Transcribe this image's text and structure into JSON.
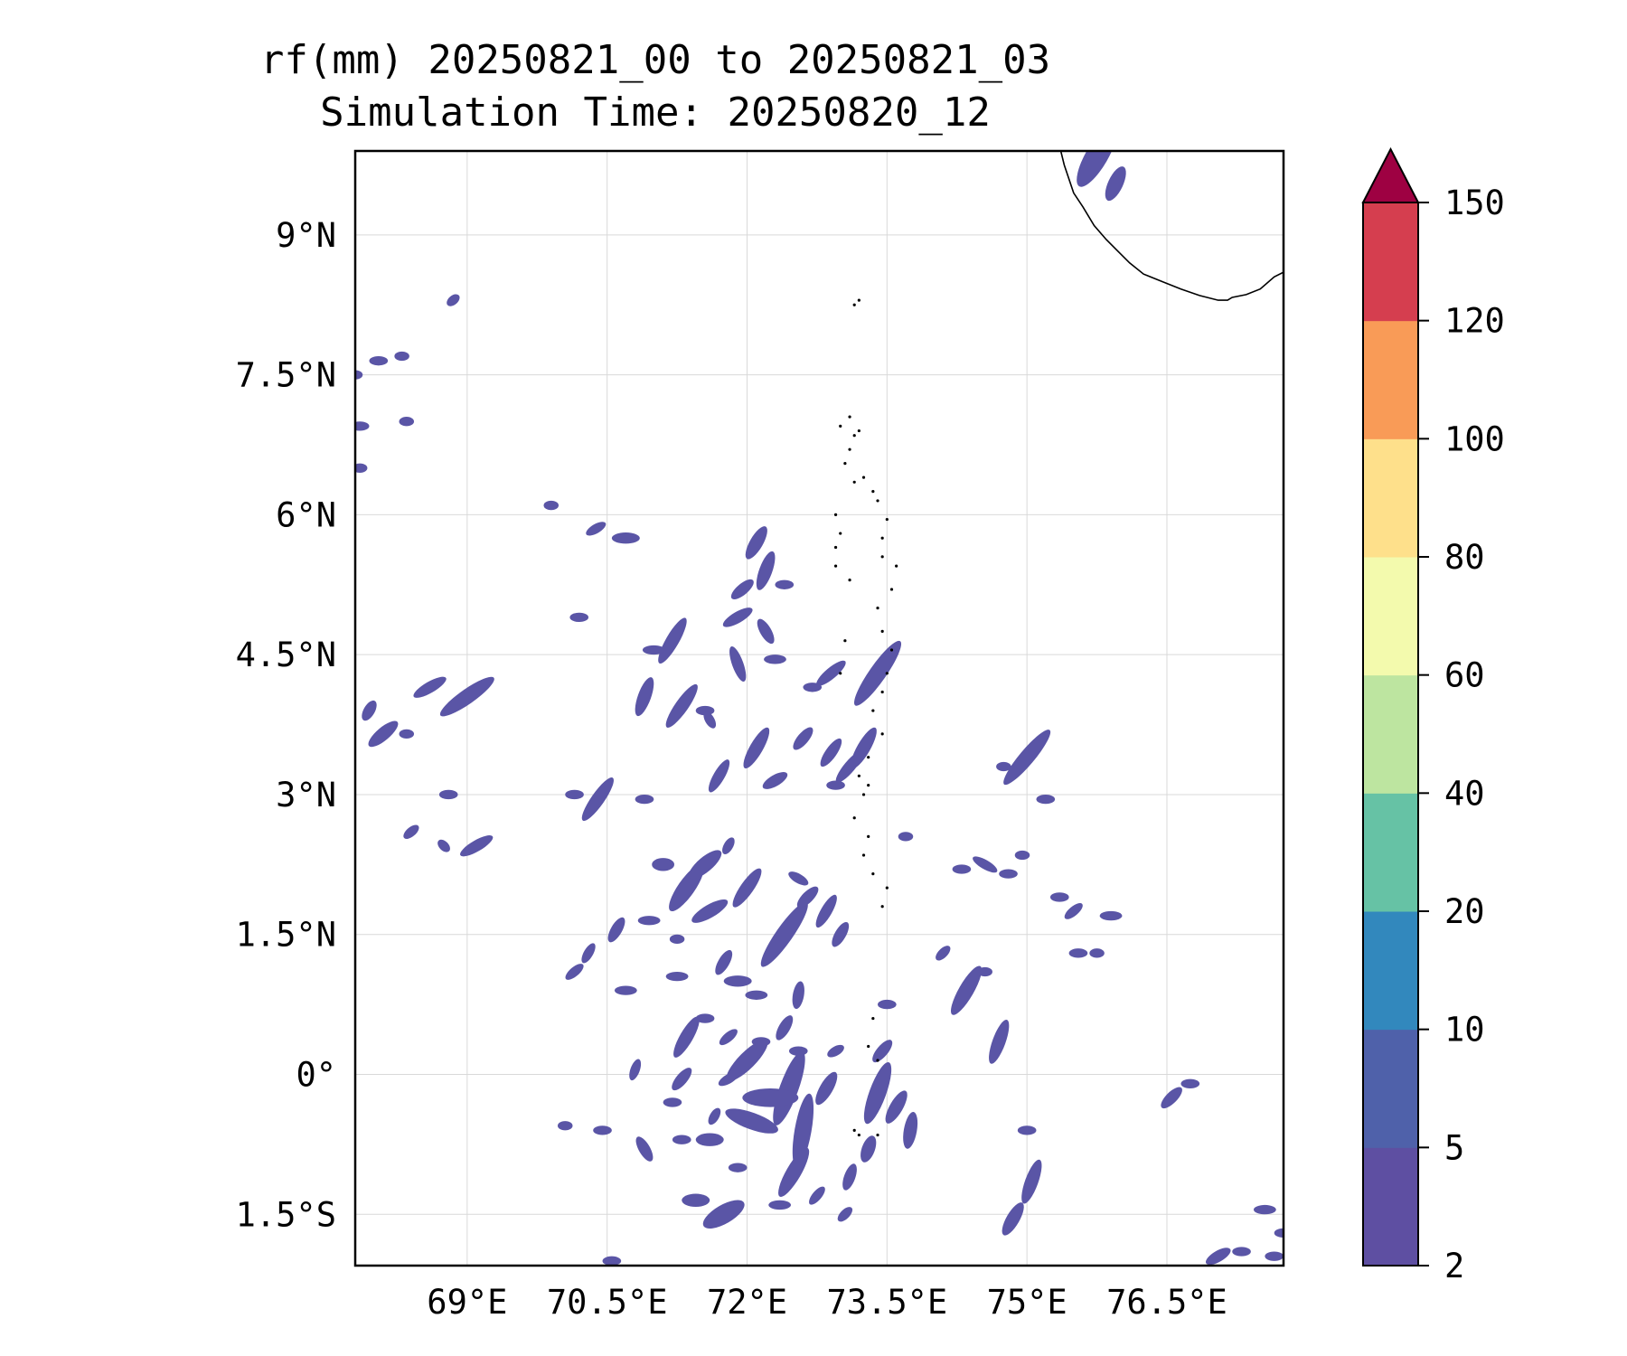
{
  "title": {
    "line1": "rf(mm) 20250821_00 to 20250821_03",
    "line2": "Simulation Time: 20250820_12"
  },
  "map": {
    "lon_range": [
      67.8,
      77.75
    ],
    "lat_range": [
      -2.05,
      9.9
    ],
    "x_ticks": [
      {
        "value": 69.0,
        "label": "69°E"
      },
      {
        "value": 70.5,
        "label": "70.5°E"
      },
      {
        "value": 72.0,
        "label": "72°E"
      },
      {
        "value": 73.5,
        "label": "73.5°E"
      },
      {
        "value": 75.0,
        "label": "75°E"
      },
      {
        "value": 76.5,
        "label": "76.5°E"
      }
    ],
    "y_ticks": [
      {
        "value": 9.0,
        "label": "9°N"
      },
      {
        "value": 7.5,
        "label": "7.5°N"
      },
      {
        "value": 6.0,
        "label": "6°N"
      },
      {
        "value": 4.5,
        "label": "4.5°N"
      },
      {
        "value": 3.0,
        "label": "3°N"
      },
      {
        "value": 1.5,
        "label": "1.5°N"
      },
      {
        "value": 0.0,
        "label": "0°"
      },
      {
        "value": -1.5,
        "label": "1.5°S"
      }
    ],
    "grid": true
  },
  "colorbar": {
    "levels": [
      2,
      5,
      10,
      20,
      40,
      60,
      80,
      100,
      120,
      150
    ],
    "labels": [
      "2",
      "5",
      "10",
      "20",
      "40",
      "60",
      "80",
      "100",
      "120",
      "150"
    ],
    "colors": [
      "#5e4fa2",
      "#4f61aa",
      "#3288bd",
      "#66c2a5",
      "#bde5a0",
      "#f3faad",
      "#fee08b",
      "#f99b57",
      "#d53e4f"
    ],
    "extend_color": "#9e0142",
    "extend": "max"
  },
  "rain_color": "#5a55a6",
  "rain_cells": [
    [
      75.75,
      9.85,
      0.38,
      0.12,
      -60
    ],
    [
      75.95,
      9.55,
      0.2,
      0.08,
      -65
    ],
    [
      70.7,
      5.75,
      0.15,
      0.06,
      0
    ],
    [
      70.38,
      5.85,
      0.12,
      0.05,
      -30
    ],
    [
      72.1,
      5.7,
      0.2,
      0.07,
      -60
    ],
    [
      72.2,
      5.4,
      0.22,
      0.07,
      -70
    ],
    [
      71.95,
      5.2,
      0.15,
      0.06,
      -40
    ],
    [
      72.4,
      5.25,
      0.1,
      0.05,
      0
    ],
    [
      71.9,
      4.9,
      0.18,
      0.06,
      -30
    ],
    [
      72.2,
      4.75,
      0.15,
      0.06,
      60
    ],
    [
      71.2,
      4.65,
      0.28,
      0.07,
      -60
    ],
    [
      71.0,
      4.55,
      0.12,
      0.05,
      0
    ],
    [
      73.4,
      4.3,
      0.42,
      0.09,
      -55
    ],
    [
      72.9,
      4.3,
      0.2,
      0.06,
      -40
    ],
    [
      71.9,
      4.4,
      0.2,
      0.06,
      70
    ],
    [
      72.3,
      4.45,
      0.12,
      0.05,
      0
    ],
    [
      72.7,
      4.15,
      0.1,
      0.05,
      0
    ],
    [
      70.9,
      4.05,
      0.22,
      0.07,
      -70
    ],
    [
      71.3,
      3.95,
      0.28,
      0.07,
      -55
    ],
    [
      71.55,
      3.9,
      0.1,
      0.05,
      0
    ],
    [
      69.0,
      4.05,
      0.35,
      0.08,
      -35
    ],
    [
      68.6,
      4.15,
      0.2,
      0.06,
      -30
    ],
    [
      67.95,
      3.9,
      0.12,
      0.06,
      -60
    ],
    [
      68.1,
      3.65,
      0.2,
      0.07,
      -40
    ],
    [
      68.35,
      3.65,
      0.08,
      0.05,
      0
    ],
    [
      72.1,
      3.5,
      0.25,
      0.07,
      -60
    ],
    [
      72.6,
      3.6,
      0.15,
      0.06,
      -50
    ],
    [
      72.9,
      3.45,
      0.18,
      0.06,
      -55
    ],
    [
      73.25,
      3.5,
      0.25,
      0.07,
      -60
    ],
    [
      73.1,
      3.3,
      0.22,
      0.06,
      -50
    ],
    [
      72.95,
      3.1,
      0.1,
      0.05,
      0
    ],
    [
      71.7,
      3.2,
      0.2,
      0.06,
      -60
    ],
    [
      72.3,
      3.15,
      0.15,
      0.06,
      -30
    ],
    [
      71.6,
      3.8,
      0.1,
      0.05,
      60
    ],
    [
      75.0,
      3.4,
      0.38,
      0.08,
      -50
    ],
    [
      74.75,
      3.3,
      0.08,
      0.05,
      0
    ],
    [
      75.2,
      2.95,
      0.1,
      0.05,
      0
    ],
    [
      70.4,
      2.95,
      0.28,
      0.07,
      -55
    ],
    [
      70.9,
      2.95,
      0.1,
      0.05,
      0
    ],
    [
      70.15,
      3.0,
      0.1,
      0.05,
      0
    ],
    [
      68.8,
      3.0,
      0.1,
      0.05,
      0
    ],
    [
      69.1,
      2.45,
      0.2,
      0.06,
      -30
    ],
    [
      68.4,
      2.6,
      0.1,
      0.05,
      -40
    ],
    [
      68.75,
      2.45,
      0.08,
      0.05,
      45
    ],
    [
      71.35,
      2.0,
      0.3,
      0.09,
      -55
    ],
    [
      71.55,
      2.25,
      0.22,
      0.08,
      -40
    ],
    [
      71.1,
      2.25,
      0.12,
      0.07,
      0
    ],
    [
      71.6,
      1.75,
      0.22,
      0.07,
      -30
    ],
    [
      72.4,
      1.5,
      0.42,
      0.09,
      -55
    ],
    [
      72.0,
      2.0,
      0.25,
      0.07,
      -55
    ],
    [
      72.65,
      1.9,
      0.15,
      0.06,
      -45
    ],
    [
      72.85,
      1.75,
      0.2,
      0.06,
      -60
    ],
    [
      73.0,
      1.5,
      0.15,
      0.06,
      -60
    ],
    [
      72.55,
      2.1,
      0.12,
      0.05,
      30
    ],
    [
      71.8,
      2.45,
      0.1,
      0.05,
      -60
    ],
    [
      73.7,
      2.55,
      0.08,
      0.05,
      0
    ],
    [
      74.95,
      2.35,
      0.08,
      0.05,
      0
    ],
    [
      74.8,
      2.15,
      0.1,
      0.05,
      0
    ],
    [
      74.55,
      2.25,
      0.15,
      0.05,
      30
    ],
    [
      74.3,
      2.2,
      0.1,
      0.05,
      0
    ],
    [
      75.35,
      1.9,
      0.1,
      0.05,
      0
    ],
    [
      75.5,
      1.75,
      0.12,
      0.05,
      -40
    ],
    [
      75.9,
      1.7,
      0.12,
      0.05,
      0
    ],
    [
      75.55,
      1.3,
      0.1,
      0.05,
      0
    ],
    [
      75.75,
      1.3,
      0.08,
      0.05,
      0
    ],
    [
      70.6,
      1.55,
      0.15,
      0.06,
      -60
    ],
    [
      70.95,
      1.65,
      0.12,
      0.05,
      0
    ],
    [
      71.25,
      1.45,
      0.08,
      0.05,
      0
    ],
    [
      70.3,
      1.3,
      0.12,
      0.05,
      -60
    ],
    [
      71.25,
      1.05,
      0.12,
      0.05,
      0
    ],
    [
      71.75,
      1.2,
      0.15,
      0.06,
      -60
    ],
    [
      71.9,
      1.0,
      0.15,
      0.06,
      0
    ],
    [
      72.1,
      0.85,
      0.12,
      0.05,
      0
    ],
    [
      70.7,
      0.9,
      0.12,
      0.05,
      0
    ],
    [
      70.15,
      1.1,
      0.12,
      0.05,
      -40
    ],
    [
      72.55,
      0.85,
      0.15,
      0.06,
      -80
    ],
    [
      73.5,
      0.75,
      0.1,
      0.05,
      0
    ],
    [
      74.35,
      0.9,
      0.3,
      0.08,
      -60
    ],
    [
      74.1,
      1.3,
      0.1,
      0.05,
      -45
    ],
    [
      74.7,
      0.35,
      0.25,
      0.07,
      -70
    ],
    [
      74.55,
      1.1,
      0.08,
      0.05,
      0
    ],
    [
      71.35,
      0.4,
      0.25,
      0.07,
      -60
    ],
    [
      71.55,
      0.6,
      0.1,
      0.05,
      0
    ],
    [
      71.8,
      0.4,
      0.12,
      0.05,
      -40
    ],
    [
      72.15,
      0.35,
      0.1,
      0.05,
      0
    ],
    [
      72.4,
      0.5,
      0.15,
      0.06,
      -60
    ],
    [
      72.55,
      0.25,
      0.1,
      0.05,
      0
    ],
    [
      72.95,
      0.25,
      0.1,
      0.05,
      -30
    ],
    [
      72.0,
      0.15,
      0.3,
      0.09,
      -45
    ],
    [
      72.45,
      -0.15,
      0.42,
      0.1,
      -70
    ],
    [
      72.25,
      -0.25,
      0.3,
      0.1,
      0
    ],
    [
      72.05,
      -0.5,
      0.3,
      0.09,
      20
    ],
    [
      72.6,
      -0.6,
      0.4,
      0.09,
      -80
    ],
    [
      72.5,
      -1.05,
      0.3,
      0.08,
      -60
    ],
    [
      72.85,
      -0.15,
      0.2,
      0.07,
      -60
    ],
    [
      73.1,
      -1.1,
      0.15,
      0.06,
      -70
    ],
    [
      73.4,
      -0.2,
      0.35,
      0.09,
      -70
    ],
    [
      73.6,
      -0.35,
      0.2,
      0.07,
      -60
    ],
    [
      73.3,
      -0.8,
      0.15,
      0.07,
      -70
    ],
    [
      73.75,
      -0.6,
      0.2,
      0.07,
      -80
    ],
    [
      73.45,
      0.25,
      0.15,
      0.06,
      -50
    ],
    [
      71.3,
      -0.05,
      0.15,
      0.06,
      -50
    ],
    [
      70.8,
      0.05,
      0.12,
      0.05,
      -70
    ],
    [
      71.8,
      -0.05,
      0.12,
      0.05,
      -30
    ],
    [
      71.2,
      -0.3,
      0.1,
      0.05,
      0
    ],
    [
      71.65,
      -0.45,
      0.1,
      0.05,
      -60
    ],
    [
      71.6,
      -0.7,
      0.15,
      0.07,
      0
    ],
    [
      71.3,
      -0.7,
      0.1,
      0.05,
      0
    ],
    [
      71.75,
      -1.5,
      0.25,
      0.1,
      -30
    ],
    [
      71.45,
      -1.35,
      0.15,
      0.07,
      0
    ],
    [
      71.9,
      -1.0,
      0.1,
      0.05,
      0
    ],
    [
      72.35,
      -1.4,
      0.12,
      0.05,
      0
    ],
    [
      72.75,
      -1.3,
      0.12,
      0.05,
      -50
    ],
    [
      73.05,
      -1.5,
      0.1,
      0.05,
      -45
    ],
    [
      70.9,
      -0.8,
      0.15,
      0.06,
      60
    ],
    [
      70.45,
      -0.6,
      0.1,
      0.05,
      0
    ],
    [
      70.05,
      -0.55,
      0.08,
      0.05,
      0
    ],
    [
      70.55,
      -2.0,
      0.1,
      0.05,
      0
    ],
    [
      74.85,
      -1.55,
      0.2,
      0.07,
      -60
    ],
    [
      75.05,
      -1.15,
      0.25,
      0.07,
      -70
    ],
    [
      75.0,
      -0.6,
      0.1,
      0.05,
      0
    ],
    [
      76.55,
      -0.25,
      0.15,
      0.06,
      -45
    ],
    [
      76.75,
      -0.1,
      0.1,
      0.05,
      0
    ],
    [
      77.05,
      -1.95,
      0.15,
      0.06,
      -30
    ],
    [
      77.3,
      -1.9,
      0.1,
      0.05,
      0
    ],
    [
      77.55,
      -1.45,
      0.12,
      0.05,
      0
    ],
    [
      77.65,
      -1.95,
      0.1,
      0.05,
      0
    ],
    [
      77.75,
      -1.7,
      0.1,
      0.05,
      0
    ],
    [
      67.85,
      6.95,
      0.1,
      0.05,
      0
    ],
    [
      68.35,
      7.0,
      0.08,
      0.05,
      0
    ],
    [
      68.05,
      7.65,
      0.1,
      0.05,
      0
    ],
    [
      68.3,
      7.7,
      0.08,
      0.05,
      0
    ],
    [
      68.85,
      8.3,
      0.08,
      0.05,
      -40
    ],
    [
      67.85,
      6.5,
      0.08,
      0.05,
      0
    ],
    [
      67.8,
      7.5,
      0.08,
      0.05,
      0
    ],
    [
      69.9,
      6.1,
      0.08,
      0.05,
      0
    ],
    [
      70.2,
      4.9,
      0.1,
      0.05,
      0
    ]
  ],
  "coastline": [
    [
      75.35,
      9.95
    ],
    [
      75.4,
      9.75
    ],
    [
      75.5,
      9.45
    ],
    [
      75.6,
      9.3
    ],
    [
      75.72,
      9.1
    ],
    [
      75.85,
      8.95
    ],
    [
      75.95,
      8.85
    ],
    [
      76.1,
      8.7
    ],
    [
      76.25,
      8.58
    ],
    [
      76.45,
      8.5
    ],
    [
      76.65,
      8.42
    ],
    [
      76.85,
      8.35
    ],
    [
      77.05,
      8.3
    ],
    [
      77.15,
      8.3
    ],
    [
      77.2,
      8.33
    ],
    [
      77.35,
      8.36
    ],
    [
      77.5,
      8.42
    ],
    [
      77.65,
      8.55
    ],
    [
      77.75,
      8.6
    ]
  ],
  "islands": [
    [
      73.15,
      8.25
    ],
    [
      73.2,
      8.3
    ],
    [
      73.0,
      6.95
    ],
    [
      73.1,
      7.05
    ],
    [
      73.15,
      6.85
    ],
    [
      73.1,
      6.7
    ],
    [
      73.2,
      6.9
    ],
    [
      73.05,
      6.55
    ],
    [
      73.15,
      6.35
    ],
    [
      73.25,
      6.4
    ],
    [
      73.35,
      6.25
    ],
    [
      73.4,
      6.15
    ],
    [
      72.95,
      6.0
    ],
    [
      73.0,
      5.8
    ],
    [
      72.95,
      5.65
    ],
    [
      72.95,
      5.45
    ],
    [
      73.1,
      5.3
    ],
    [
      73.5,
      5.95
    ],
    [
      73.45,
      5.75
    ],
    [
      73.45,
      5.55
    ],
    [
      73.6,
      5.45
    ],
    [
      73.55,
      5.2
    ],
    [
      73.4,
      5.0
    ],
    [
      73.45,
      4.75
    ],
    [
      73.55,
      4.55
    ],
    [
      73.5,
      4.3
    ],
    [
      73.45,
      4.1
    ],
    [
      73.35,
      3.9
    ],
    [
      73.45,
      3.65
    ],
    [
      73.3,
      3.4
    ],
    [
      73.2,
      3.2
    ],
    [
      73.25,
      3.0
    ],
    [
      73.15,
      2.75
    ],
    [
      73.3,
      2.55
    ],
    [
      73.25,
      2.35
    ],
    [
      73.35,
      2.15
    ],
    [
      73.5,
      2.0
    ],
    [
      73.45,
      1.8
    ],
    [
      73.35,
      0.6
    ],
    [
      73.3,
      0.3
    ],
    [
      73.4,
      0.15
    ],
    [
      73.15,
      -0.6
    ],
    [
      73.2,
      -0.65
    ],
    [
      73.4,
      -0.65
    ],
    [
      73.3,
      3.1
    ],
    [
      73.05,
      4.65
    ],
    [
      73.0,
      4.3
    ]
  ]
}
